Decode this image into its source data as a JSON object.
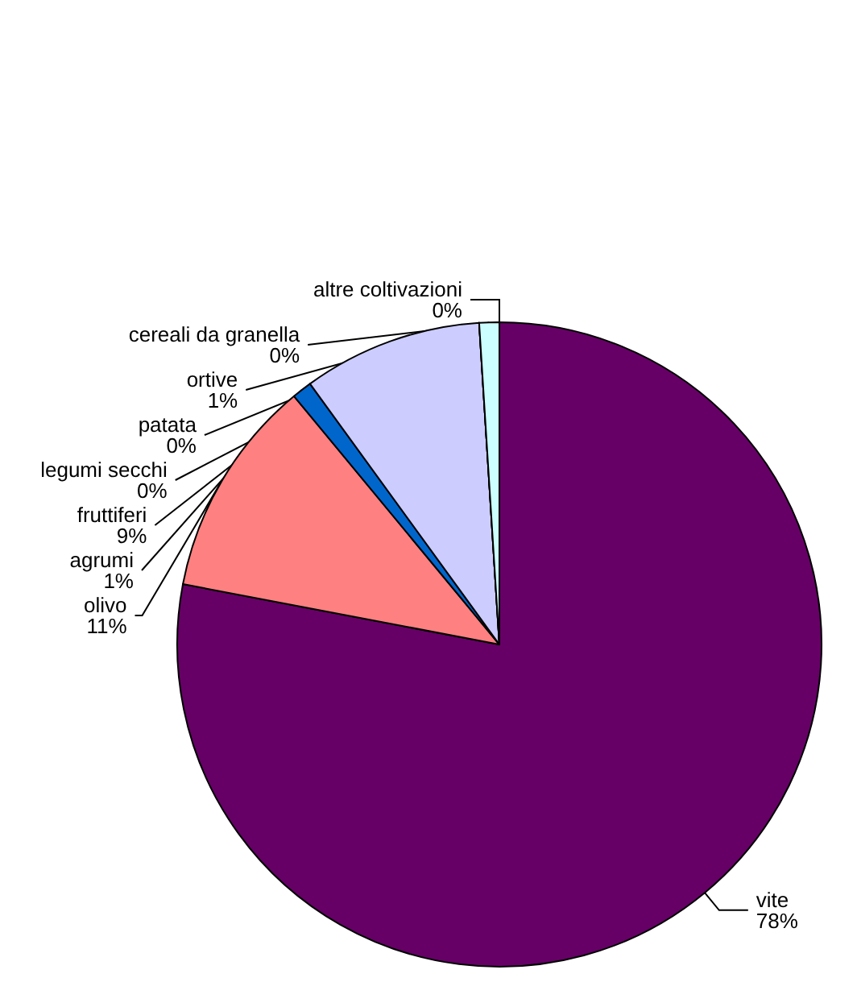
{
  "chart_data": {
    "type": "pie",
    "categories": [
      "vite",
      "olivo",
      "agrumi",
      "fruttiferi",
      "patata",
      "legumi secchi",
      "ortive",
      "altre coltivazioni",
      "cereali da granella"
    ],
    "values": [
      78,
      11,
      1,
      9,
      0,
      0,
      1,
      0,
      0
    ],
    "value_labels": [
      "78%",
      "11%",
      "1%",
      "9%",
      "0%",
      "0%",
      "1%",
      "0%",
      "0%"
    ],
    "colors": [
      "#660066",
      "#ff8080",
      "#0066cc",
      "#ccccff",
      "#9999ff",
      "#000080",
      "#ccffff",
      "#000000",
      "#993366"
    ],
    "legend": false
  }
}
